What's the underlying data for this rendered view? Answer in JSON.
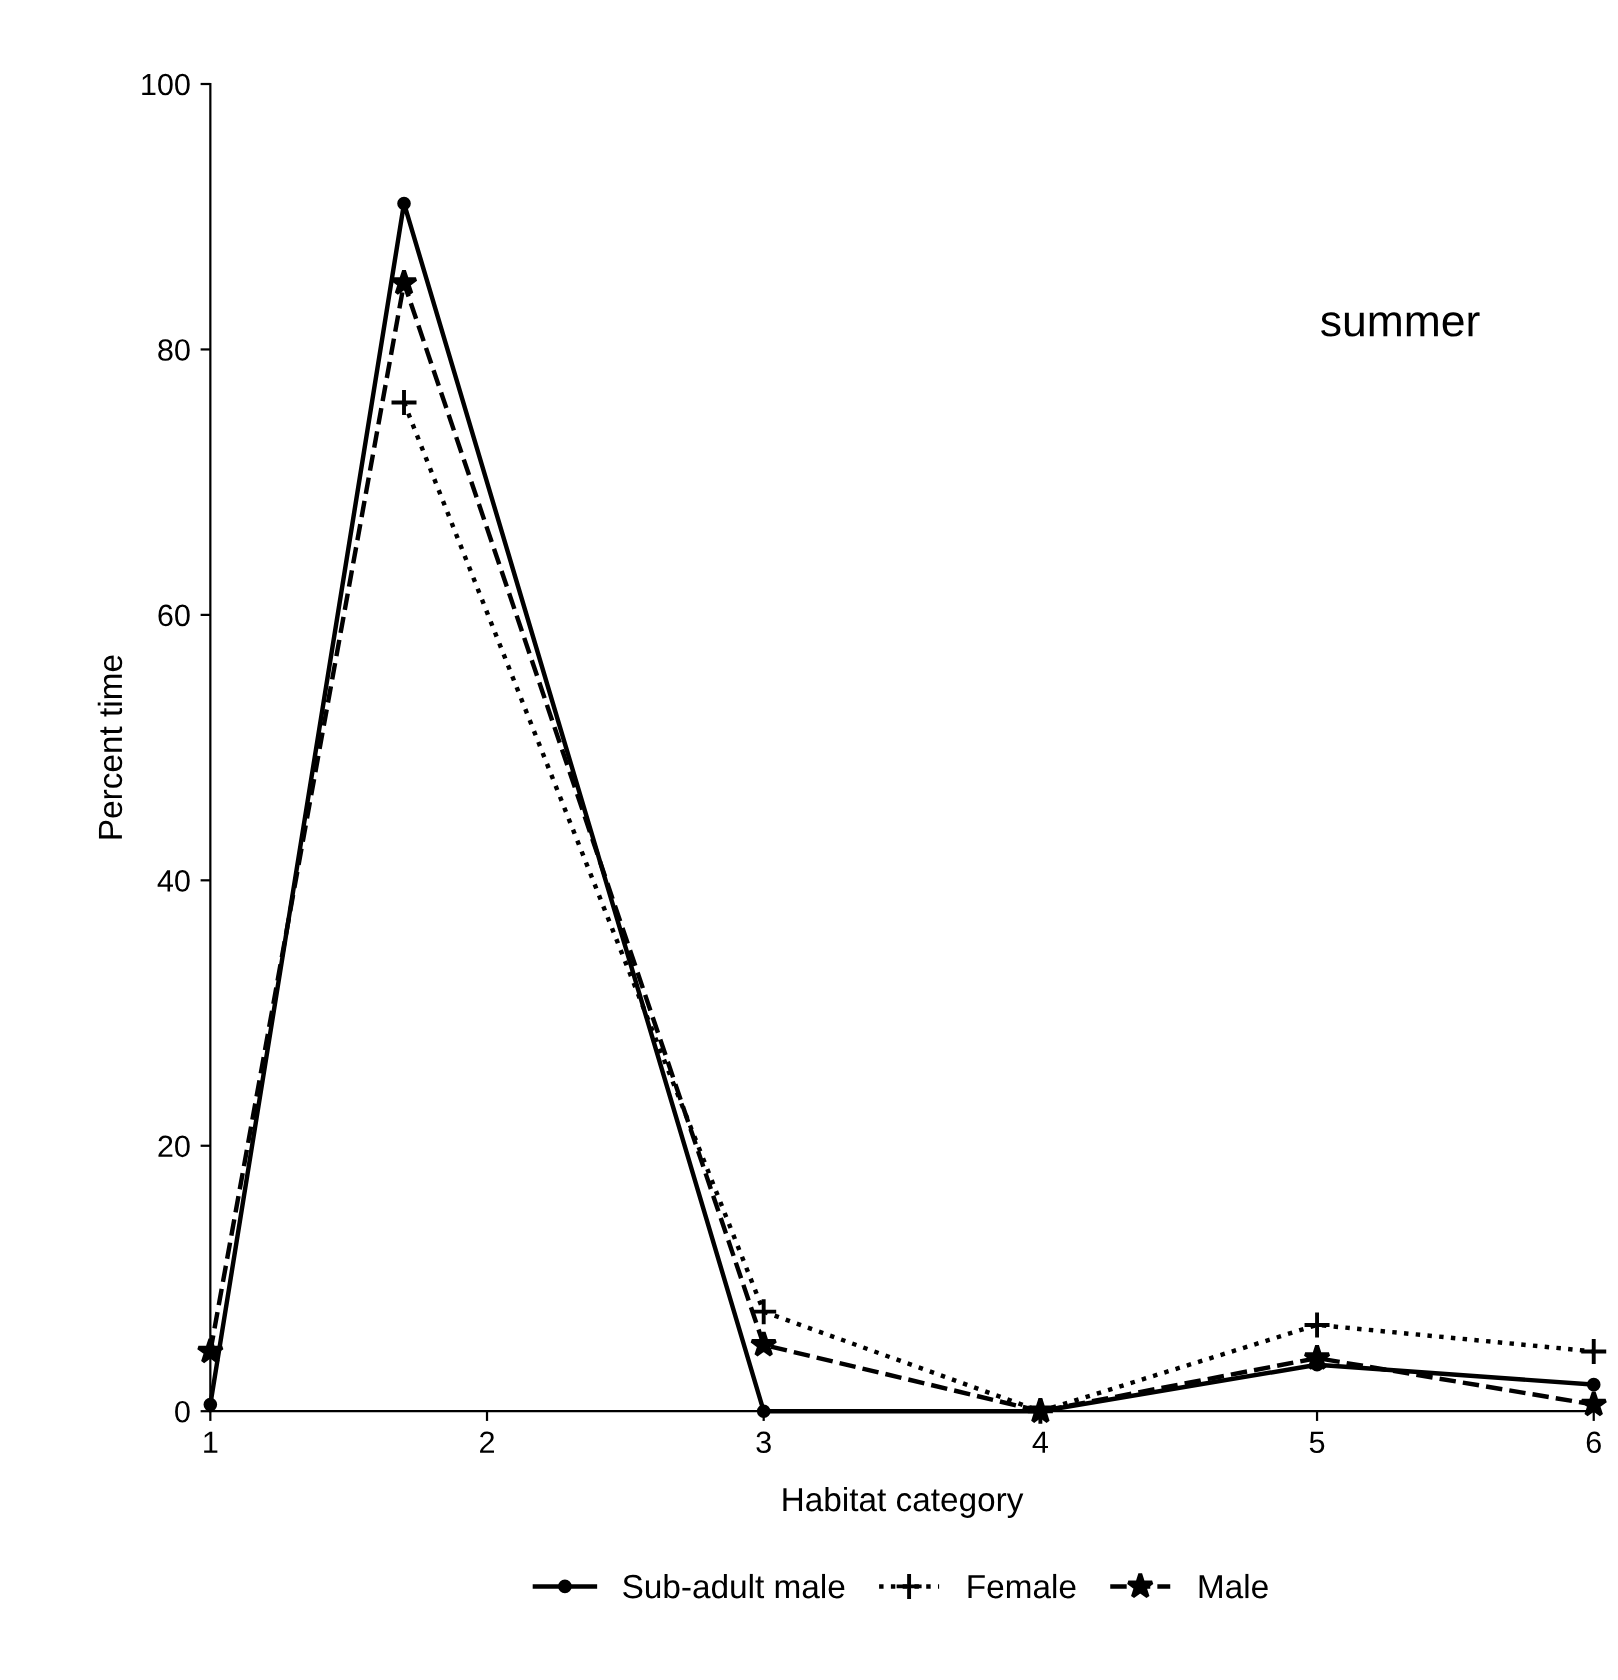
{
  "chart_data": {
    "type": "line",
    "xlabel": "Habitat category",
    "ylabel": "Percent time",
    "annotations": [
      "summer"
    ],
    "x": [
      1,
      1.7,
      3,
      4,
      5,
      6
    ],
    "series": [
      {
        "name": "Sub-adult male",
        "color": "#000000",
        "line_style": "solid",
        "marker": "circle",
        "values": [
          0.5,
          91,
          0,
          0,
          3.5,
          2
        ]
      },
      {
        "name": "Female",
        "color": "#000000",
        "line_style": "dotted",
        "marker": "cross",
        "values": [
          null,
          76,
          7.5,
          0,
          6.5,
          4.5
        ]
      },
      {
        "name": "Male",
        "color": "#000000",
        "line_style": "dashed",
        "marker": "star",
        "values": [
          4.5,
          85,
          5,
          0,
          4,
          0.5
        ]
      }
    ],
    "xlim": [
      1,
      6
    ],
    "xticks": [
      1,
      2,
      3,
      4,
      5,
      6
    ],
    "ylim": [
      0,
      100
    ],
    "yticks": [
      0,
      20,
      40,
      60,
      80,
      100
    ],
    "grid": false,
    "legend": "bottom"
  }
}
